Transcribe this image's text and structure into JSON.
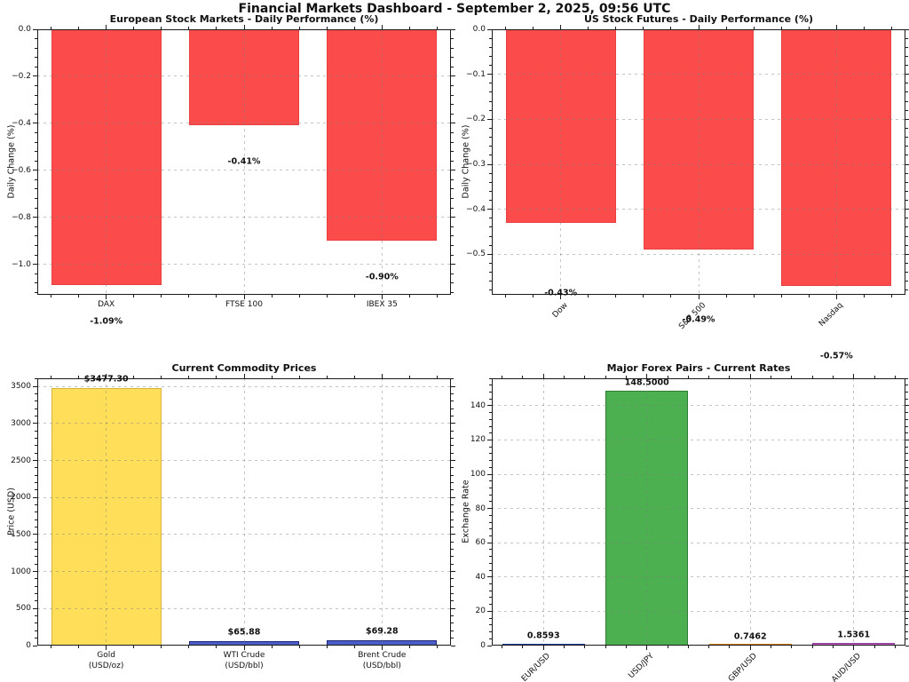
{
  "header": {
    "title": "Financial Markets Dashboard - September 2, 2025, 09:56 UTC"
  },
  "chart_data": [
    {
      "id": "european-stocks",
      "type": "bar",
      "title": "European Stock Markets - Daily Performance (%)",
      "ylabel": "Daily Change (%)",
      "xlabel": "",
      "categories": [
        "DAX",
        "FTSE 100",
        "IBEX 35"
      ],
      "values": [
        -1.09,
        -0.41,
        -0.9
      ],
      "value_labels": [
        "-1.09%",
        "-0.41%",
        "-0.90%"
      ],
      "bar_colors": [
        "#fc4b4b",
        "#fc4b4b",
        "#fc4b4b"
      ],
      "edge_colors": [
        "#e84040",
        "#e84040",
        "#e84040"
      ],
      "ylim": [
        -1.13,
        0
      ],
      "yticks": [
        0,
        -0.2,
        -0.4,
        -0.6,
        -0.8,
        -1.0
      ],
      "ytick_labels": [
        "0.0",
        "−0.2",
        "−0.4",
        "−0.6",
        "−0.8",
        "−1.0"
      ],
      "xtick_rotation": 0,
      "grid": true,
      "label_dy": 41
    },
    {
      "id": "us-futures",
      "type": "bar",
      "title": "US Stock Futures - Daily Performance (%)",
      "ylabel": "Daily Change (%)",
      "xlabel": "",
      "categories": [
        "Dow",
        "S&P 500",
        "Nasdaq"
      ],
      "values": [
        -0.43,
        -0.49,
        -0.57
      ],
      "value_labels": [
        "-0.43%",
        "-0.49%",
        "-0.57%"
      ],
      "bar_colors": [
        "#fc4b4b",
        "#fc4b4b",
        "#fc4b4b"
      ],
      "edge_colors": [
        "#e84040",
        "#e84040",
        "#e84040"
      ],
      "ylim": [
        -0.59,
        0
      ],
      "yticks": [
        0,
        -0.1,
        -0.2,
        -0.3,
        -0.4,
        -0.5
      ],
      "ytick_labels": [
        "0.0",
        "−0.1",
        "−0.2",
        "−0.3",
        "−0.4",
        "−0.5"
      ],
      "xtick_rotation": 45,
      "grid": true,
      "label_dy": 79
    },
    {
      "id": "commodities",
      "type": "bar",
      "title": "Current Commodity Prices",
      "ylabel": "Price (USD)",
      "xlabel": "",
      "categories": [
        "Gold\n(USD/oz)",
        "WTI Crude\n(USD/bbl)",
        "Brent Crude\n(USD/bbl)"
      ],
      "values": [
        3477.3,
        65.88,
        69.28
      ],
      "value_labels": [
        "$3477.30",
        "$65.88",
        "$69.28"
      ],
      "bar_colors": [
        "#ffde59",
        "#4a5cc5",
        "#4a5cc5"
      ],
      "edge_colors": [
        "#d9b13b",
        "#20287d",
        "#20287d"
      ],
      "ylim": [
        0,
        3610
      ],
      "yticks": [
        0,
        500,
        1000,
        1500,
        2000,
        2500,
        3000,
        3500
      ],
      "ytick_labels": [
        "0",
        "500",
        "1000",
        "1500",
        "2000",
        "2500",
        "3000",
        "3500"
      ],
      "xtick_rotation": 0,
      "grid": true,
      "label_dy": -10
    },
    {
      "id": "forex",
      "type": "bar",
      "title": "Major Forex Pairs - Current Rates",
      "ylabel": "Exchange Rate",
      "xlabel": "",
      "categories": [
        "EUR/USD",
        "USD/JPY",
        "GBP/USD",
        "AUD/USD"
      ],
      "values": [
        0.8593,
        148.5,
        0.7462,
        1.5361
      ],
      "value_labels": [
        "0.8593",
        "148.5000",
        "0.7462",
        "1.5361"
      ],
      "bar_colors": [
        "#4169e1",
        "#4caf50",
        "#ffa733",
        "#c45ec4"
      ],
      "edge_colors": [
        "#1a3a9e",
        "#2e7d32",
        "#cc7a00",
        "#8e3a9e"
      ],
      "ylim": [
        0,
        156
      ],
      "yticks": [
        0,
        20,
        40,
        60,
        80,
        100,
        120,
        140
      ],
      "ytick_labels": [
        "0",
        "20",
        "40",
        "60",
        "80",
        "100",
        "120",
        "140"
      ],
      "xtick_rotation": 45,
      "grid": true,
      "label_dy": -9
    }
  ]
}
